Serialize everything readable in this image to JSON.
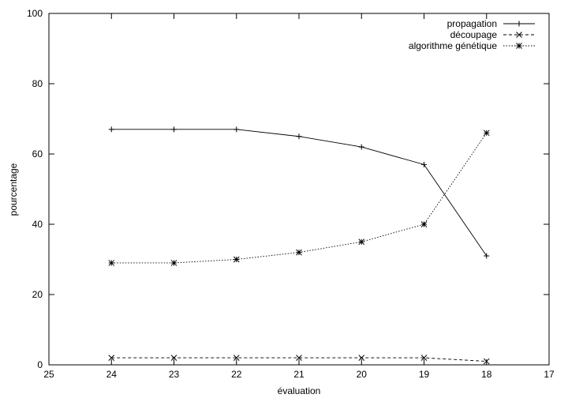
{
  "chart_data": {
    "type": "line",
    "xlabel": "évaluation",
    "ylabel": "pourcentage",
    "xlim": [
      25,
      17
    ],
    "ylim": [
      0,
      100
    ],
    "x_reversed": true,
    "xticks": [
      25,
      24,
      23,
      22,
      21,
      20,
      19,
      18,
      17
    ],
    "yticks": [
      0,
      20,
      40,
      60,
      80,
      100
    ],
    "grid": false,
    "legend_position": "top-right",
    "x": [
      24,
      23,
      22,
      21,
      20,
      19,
      18
    ],
    "series": [
      {
        "name": "propagation",
        "values": [
          67,
          67,
          67,
          65,
          62,
          57,
          31
        ],
        "marker": "plus",
        "dash": "solid",
        "color": "#000000"
      },
      {
        "name": "découpage",
        "values": [
          2,
          2,
          2,
          2,
          2,
          2,
          1
        ],
        "marker": "cross",
        "dash": "dashed",
        "color": "#000000"
      },
      {
        "name": "algorithme génétique",
        "values": [
          29,
          29,
          30,
          32,
          35,
          40,
          66
        ],
        "marker": "star",
        "dash": "dotted",
        "color": "#000000"
      }
    ]
  }
}
